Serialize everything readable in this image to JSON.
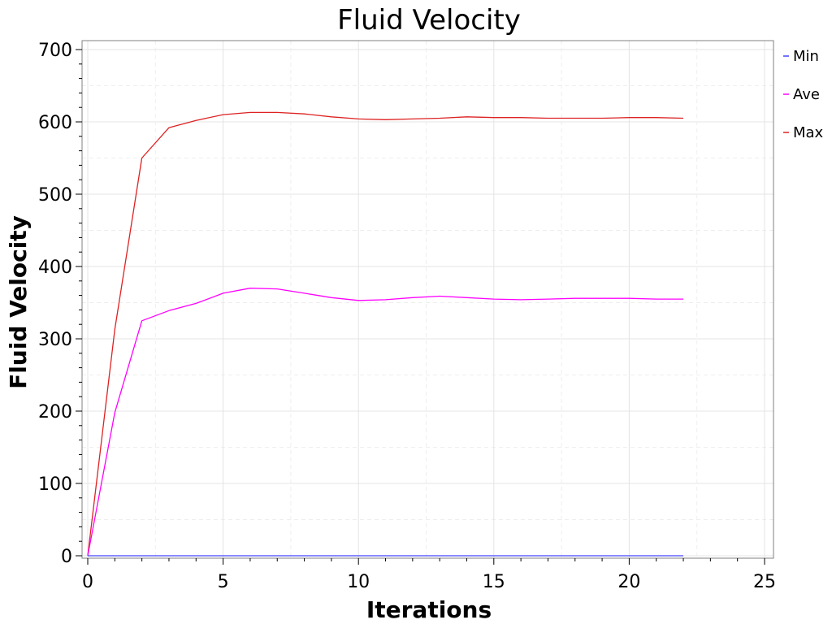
{
  "chart_data": {
    "type": "line",
    "title": "Fluid Velocity",
    "xlabel": "Iterations",
    "ylabel": "Fluid Velocity",
    "xlim": [
      0,
      25
    ],
    "ylim": [
      0,
      700
    ],
    "x_ticks": [
      0,
      5,
      10,
      15,
      20,
      25
    ],
    "y_ticks": [
      0,
      100,
      200,
      300,
      400,
      500,
      600,
      700
    ],
    "grid": true,
    "legend_position": "right",
    "series": [
      {
        "name": "Min",
        "color": "#4444ff",
        "x": [
          0,
          1,
          2,
          3,
          4,
          5,
          6,
          7,
          8,
          9,
          10,
          11,
          12,
          13,
          14,
          15,
          16,
          17,
          18,
          19,
          20,
          21,
          22
        ],
        "y": [
          0,
          0,
          0,
          0,
          0,
          0,
          0,
          0,
          0,
          0,
          0,
          0,
          0,
          0,
          0,
          0,
          0,
          0,
          0,
          0,
          0,
          0,
          0
        ]
      },
      {
        "name": "Ave",
        "color": "#ff00ff",
        "x": [
          0,
          1,
          2,
          3,
          4,
          5,
          6,
          7,
          8,
          9,
          10,
          11,
          12,
          13,
          14,
          15,
          16,
          17,
          18,
          19,
          20,
          21,
          22
        ],
        "y": [
          0,
          198,
          325,
          339,
          349,
          363,
          370,
          369,
          363,
          357,
          353,
          354,
          357,
          359,
          357,
          355,
          354,
          355,
          356,
          356,
          356,
          355,
          355
        ]
      },
      {
        "name": "Max",
        "color": "#dd2222",
        "x": [
          0,
          1,
          2,
          3,
          4,
          5,
          6,
          7,
          8,
          9,
          10,
          11,
          12,
          13,
          14,
          15,
          16,
          17,
          18,
          19,
          20,
          21,
          22
        ],
        "y": [
          0,
          313,
          550,
          592,
          602,
          610,
          613,
          613,
          611,
          607,
          604,
          603,
          604,
          605,
          607,
          606,
          606,
          605,
          605,
          605,
          606,
          606,
          605
        ]
      }
    ]
  }
}
